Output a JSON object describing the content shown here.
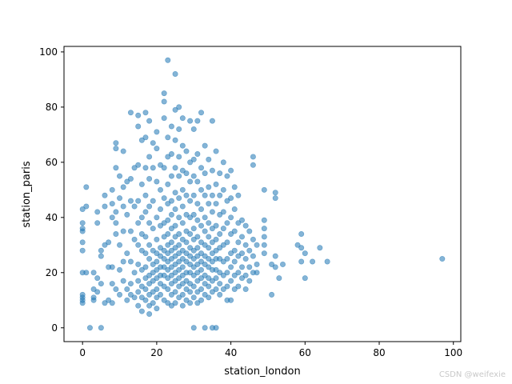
{
  "chart_data": {
    "type": "scatter",
    "xlabel": "station_london",
    "ylabel": "station_paris",
    "xlim": [
      -5,
      102
    ],
    "ylim": [
      -5,
      102
    ],
    "xticks": [
      "0",
      "20",
      "40",
      "60",
      "80",
      "100"
    ],
    "yticks": [
      "0",
      "20",
      "40",
      "60",
      "80",
      "100"
    ],
    "grid": false,
    "point_color": "#1f77b4",
    "point_alpha": 0.55,
    "points": [
      [
        0,
        43
      ],
      [
        0,
        38
      ],
      [
        0,
        36
      ],
      [
        0,
        35
      ],
      [
        0,
        31
      ],
      [
        0,
        28
      ],
      [
        0,
        20
      ],
      [
        0,
        12
      ],
      [
        0,
        11
      ],
      [
        0,
        10
      ],
      [
        0,
        9
      ],
      [
        1,
        51
      ],
      [
        1,
        44
      ],
      [
        1,
        20
      ],
      [
        2,
        0
      ],
      [
        5,
        0
      ],
      [
        3,
        20
      ],
      [
        3,
        14
      ],
      [
        3,
        11
      ],
      [
        3,
        10
      ],
      [
        4,
        42
      ],
      [
        4,
        38
      ],
      [
        4,
        18
      ],
      [
        4,
        13
      ],
      [
        5,
        28
      ],
      [
        5,
        26
      ],
      [
        5,
        16
      ],
      [
        6,
        48
      ],
      [
        6,
        44
      ],
      [
        6,
        30
      ],
      [
        6,
        9
      ],
      [
        7,
        10
      ],
      [
        7,
        22
      ],
      [
        7,
        31
      ],
      [
        8,
        50
      ],
      [
        8,
        45
      ],
      [
        8,
        40
      ],
      [
        8,
        22
      ],
      [
        8,
        16
      ],
      [
        8,
        9
      ],
      [
        9,
        67
      ],
      [
        9,
        65
      ],
      [
        9,
        58
      ],
      [
        9,
        42
      ],
      [
        9,
        38
      ],
      [
        9,
        34
      ],
      [
        9,
        14
      ],
      [
        10,
        55
      ],
      [
        10,
        47
      ],
      [
        10,
        30
      ],
      [
        10,
        21
      ],
      [
        10,
        12
      ],
      [
        11,
        64
      ],
      [
        11,
        51
      ],
      [
        11,
        44
      ],
      [
        11,
        35
      ],
      [
        11,
        24
      ],
      [
        11,
        17
      ],
      [
        12,
        53
      ],
      [
        12,
        41
      ],
      [
        12,
        27
      ],
      [
        12,
        14
      ],
      [
        12,
        10
      ],
      [
        13,
        78
      ],
      [
        13,
        54
      ],
      [
        13,
        46
      ],
      [
        13,
        35
      ],
      [
        13,
        24
      ],
      [
        13,
        16
      ],
      [
        13,
        12
      ],
      [
        14,
        58
      ],
      [
        14,
        44
      ],
      [
        14,
        32
      ],
      [
        14,
        20
      ],
      [
        14,
        11
      ],
      [
        15,
        77
      ],
      [
        15,
        73
      ],
      [
        15,
        59
      ],
      [
        15,
        46
      ],
      [
        15,
        38
      ],
      [
        15,
        30
      ],
      [
        15,
        23
      ],
      [
        15,
        17
      ],
      [
        15,
        13
      ],
      [
        15,
        8
      ],
      [
        16,
        68
      ],
      [
        16,
        52
      ],
      [
        16,
        40
      ],
      [
        16,
        34
      ],
      [
        16,
        28
      ],
      [
        16,
        21
      ],
      [
        16,
        15
      ],
      [
        16,
        11
      ],
      [
        16,
        6
      ],
      [
        17,
        78
      ],
      [
        17,
        69
      ],
      [
        17,
        58
      ],
      [
        17,
        48
      ],
      [
        17,
        42
      ],
      [
        17,
        33
      ],
      [
        17,
        27
      ],
      [
        17,
        22
      ],
      [
        17,
        18
      ],
      [
        17,
        14
      ],
      [
        17,
        10
      ],
      [
        18,
        75
      ],
      [
        18,
        62
      ],
      [
        18,
        54
      ],
      [
        18,
        44
      ],
      [
        18,
        38
      ],
      [
        18,
        30
      ],
      [
        18,
        25
      ],
      [
        18,
        19
      ],
      [
        18,
        16
      ],
      [
        18,
        12
      ],
      [
        18,
        8
      ],
      [
        18,
        5
      ],
      [
        19,
        67
      ],
      [
        19,
        58
      ],
      [
        19,
        46
      ],
      [
        19,
        36
      ],
      [
        19,
        28
      ],
      [
        19,
        23
      ],
      [
        19,
        20
      ],
      [
        19,
        17
      ],
      [
        19,
        13
      ],
      [
        19,
        9
      ],
      [
        20,
        71
      ],
      [
        20,
        65
      ],
      [
        20,
        53
      ],
      [
        20,
        40
      ],
      [
        20,
        32
      ],
      [
        20,
        27
      ],
      [
        20,
        24
      ],
      [
        20,
        21
      ],
      [
        20,
        18
      ],
      [
        20,
        14
      ],
      [
        20,
        11
      ],
      [
        20,
        7
      ],
      [
        21,
        59
      ],
      [
        21,
        50
      ],
      [
        21,
        43
      ],
      [
        21,
        37
      ],
      [
        21,
        29
      ],
      [
        21,
        26
      ],
      [
        21,
        22
      ],
      [
        21,
        19
      ],
      [
        21,
        16
      ],
      [
        21,
        12
      ],
      [
        22,
        85
      ],
      [
        22,
        82
      ],
      [
        22,
        76
      ],
      [
        22,
        58
      ],
      [
        22,
        47
      ],
      [
        22,
        38
      ],
      [
        22,
        33
      ],
      [
        22,
        28
      ],
      [
        22,
        25
      ],
      [
        22,
        22
      ],
      [
        22,
        19
      ],
      [
        22,
        15
      ],
      [
        22,
        10
      ],
      [
        23,
        97
      ],
      [
        23,
        69
      ],
      [
        23,
        62
      ],
      [
        23,
        52
      ],
      [
        23,
        45
      ],
      [
        23,
        39
      ],
      [
        23,
        34
      ],
      [
        23,
        30
      ],
      [
        23,
        27
      ],
      [
        23,
        24
      ],
      [
        23,
        21
      ],
      [
        23,
        18
      ],
      [
        23,
        14
      ],
      [
        23,
        9
      ],
      [
        24,
        73
      ],
      [
        24,
        63
      ],
      [
        24,
        55
      ],
      [
        24,
        46
      ],
      [
        24,
        41
      ],
      [
        24,
        36
      ],
      [
        24,
        31
      ],
      [
        24,
        28
      ],
      [
        24,
        25
      ],
      [
        24,
        22
      ],
      [
        24,
        19
      ],
      [
        24,
        16
      ],
      [
        24,
        12
      ],
      [
        24,
        8
      ],
      [
        25,
        92
      ],
      [
        25,
        79
      ],
      [
        25,
        68
      ],
      [
        25,
        58
      ],
      [
        25,
        49
      ],
      [
        25,
        43
      ],
      [
        25,
        37
      ],
      [
        25,
        33
      ],
      [
        25,
        29
      ],
      [
        25,
        26
      ],
      [
        25,
        23
      ],
      [
        25,
        20
      ],
      [
        25,
        17
      ],
      [
        25,
        13
      ],
      [
        25,
        9
      ],
      [
        26,
        80
      ],
      [
        26,
        72
      ],
      [
        26,
        62
      ],
      [
        26,
        55
      ],
      [
        26,
        47
      ],
      [
        26,
        40
      ],
      [
        26,
        34
      ],
      [
        26,
        30
      ],
      [
        26,
        27
      ],
      [
        26,
        24
      ],
      [
        26,
        21
      ],
      [
        26,
        18
      ],
      [
        26,
        15
      ],
      [
        26,
        11
      ],
      [
        27,
        76
      ],
      [
        27,
        66
      ],
      [
        27,
        57
      ],
      [
        27,
        50
      ],
      [
        27,
        44
      ],
      [
        27,
        38
      ],
      [
        27,
        32
      ],
      [
        27,
        28
      ],
      [
        27,
        25
      ],
      [
        27,
        22
      ],
      [
        27,
        19
      ],
      [
        27,
        16
      ],
      [
        27,
        12
      ],
      [
        27,
        8
      ],
      [
        28,
        64
      ],
      [
        28,
        56
      ],
      [
        28,
        48
      ],
      [
        28,
        41
      ],
      [
        28,
        35
      ],
      [
        28,
        31
      ],
      [
        28,
        27
      ],
      [
        28,
        24
      ],
      [
        28,
        20
      ],
      [
        28,
        17
      ],
      [
        28,
        14
      ],
      [
        28,
        10
      ],
      [
        29,
        75
      ],
      [
        29,
        60
      ],
      [
        29,
        53
      ],
      [
        29,
        46
      ],
      [
        29,
        40
      ],
      [
        29,
        34
      ],
      [
        29,
        29
      ],
      [
        29,
        26
      ],
      [
        29,
        23
      ],
      [
        29,
        20
      ],
      [
        29,
        16
      ],
      [
        29,
        13
      ],
      [
        29,
        9
      ],
      [
        30,
        72
      ],
      [
        30,
        61
      ],
      [
        30,
        55
      ],
      [
        30,
        48
      ],
      [
        30,
        41
      ],
      [
        30,
        36
      ],
      [
        30,
        32
      ],
      [
        30,
        28
      ],
      [
        30,
        25
      ],
      [
        30,
        22
      ],
      [
        30,
        19
      ],
      [
        30,
        15
      ],
      [
        30,
        11
      ],
      [
        30,
        0
      ],
      [
        31,
        75
      ],
      [
        31,
        63
      ],
      [
        31,
        53
      ],
      [
        31,
        45
      ],
      [
        31,
        39
      ],
      [
        31,
        33
      ],
      [
        31,
        29
      ],
      [
        31,
        26
      ],
      [
        31,
        23
      ],
      [
        31,
        20
      ],
      [
        31,
        17
      ],
      [
        31,
        13
      ],
      [
        31,
        9
      ],
      [
        32,
        78
      ],
      [
        32,
        58
      ],
      [
        32,
        50
      ],
      [
        32,
        43
      ],
      [
        32,
        37
      ],
      [
        32,
        31
      ],
      [
        32,
        27
      ],
      [
        32,
        24
      ],
      [
        32,
        21
      ],
      [
        32,
        18
      ],
      [
        32,
        14
      ],
      [
        32,
        10
      ],
      [
        33,
        66
      ],
      [
        33,
        56
      ],
      [
        33,
        48
      ],
      [
        33,
        40
      ],
      [
        33,
        35
      ],
      [
        33,
        30
      ],
      [
        33,
        26
      ],
      [
        33,
        23
      ],
      [
        33,
        19
      ],
      [
        33,
        16
      ],
      [
        33,
        12
      ],
      [
        33,
        0
      ],
      [
        34,
        61
      ],
      [
        34,
        51
      ],
      [
        34,
        45
      ],
      [
        34,
        38
      ],
      [
        34,
        33
      ],
      [
        34,
        29
      ],
      [
        34,
        25
      ],
      [
        34,
        22
      ],
      [
        34,
        18
      ],
      [
        34,
        15
      ],
      [
        34,
        11
      ],
      [
        35,
        75
      ],
      [
        35,
        57
      ],
      [
        35,
        48
      ],
      [
        35,
        42
      ],
      [
        35,
        36
      ],
      [
        35,
        31
      ],
      [
        35,
        27
      ],
      [
        35,
        24
      ],
      [
        35,
        21
      ],
      [
        35,
        17
      ],
      [
        35,
        13
      ],
      [
        35,
        0
      ],
      [
        36,
        64
      ],
      [
        36,
        52
      ],
      [
        36,
        45
      ],
      [
        36,
        37
      ],
      [
        36,
        32
      ],
      [
        36,
        28
      ],
      [
        36,
        25
      ],
      [
        36,
        21
      ],
      [
        36,
        18
      ],
      [
        36,
        14
      ],
      [
        36,
        0
      ],
      [
        37,
        56
      ],
      [
        37,
        48
      ],
      [
        37,
        41
      ],
      [
        37,
        34
      ],
      [
        37,
        29
      ],
      [
        37,
        25
      ],
      [
        37,
        20
      ],
      [
        37,
        16
      ],
      [
        37,
        12
      ],
      [
        38,
        60
      ],
      [
        38,
        50
      ],
      [
        38,
        42
      ],
      [
        38,
        36
      ],
      [
        38,
        30
      ],
      [
        38,
        24
      ],
      [
        38,
        19
      ],
      [
        38,
        14
      ],
      [
        39,
        55
      ],
      [
        39,
        46
      ],
      [
        39,
        38
      ],
      [
        39,
        31
      ],
      [
        39,
        25
      ],
      [
        39,
        20
      ],
      [
        39,
        15
      ],
      [
        39,
        10
      ],
      [
        40,
        57
      ],
      [
        40,
        47
      ],
      [
        40,
        40
      ],
      [
        40,
        34
      ],
      [
        40,
        27
      ],
      [
        40,
        22
      ],
      [
        40,
        17
      ],
      [
        40,
        10
      ],
      [
        41,
        51
      ],
      [
        41,
        43
      ],
      [
        41,
        35
      ],
      [
        41,
        28
      ],
      [
        41,
        24
      ],
      [
        41,
        19
      ],
      [
        41,
        14
      ],
      [
        42,
        48
      ],
      [
        42,
        38
      ],
      [
        42,
        31
      ],
      [
        42,
        26
      ],
      [
        42,
        20
      ],
      [
        42,
        15
      ],
      [
        43,
        39
      ],
      [
        43,
        33
      ],
      [
        43,
        27
      ],
      [
        43,
        22
      ],
      [
        43,
        18
      ],
      [
        44,
        37
      ],
      [
        44,
        30
      ],
      [
        44,
        25
      ],
      [
        44,
        19
      ],
      [
        44,
        14
      ],
      [
        45,
        35
      ],
      [
        45,
        28
      ],
      [
        45,
        22
      ],
      [
        45,
        17
      ],
      [
        46,
        62
      ],
      [
        46,
        59
      ],
      [
        46,
        32
      ],
      [
        46,
        26
      ],
      [
        46,
        20
      ],
      [
        47,
        30
      ],
      [
        47,
        23
      ],
      [
        47,
        20
      ],
      [
        49,
        50
      ],
      [
        49,
        39
      ],
      [
        49,
        36
      ],
      [
        49,
        33
      ],
      [
        49,
        30
      ],
      [
        49,
        27
      ],
      [
        51,
        12
      ],
      [
        51,
        23
      ],
      [
        52,
        49
      ],
      [
        52,
        47
      ],
      [
        52,
        26
      ],
      [
        52,
        22
      ],
      [
        53,
        18
      ],
      [
        54,
        23
      ],
      [
        58,
        30
      ],
      [
        59,
        34
      ],
      [
        59,
        29
      ],
      [
        59,
        24
      ],
      [
        60,
        27
      ],
      [
        60,
        18
      ],
      [
        62,
        24
      ],
      [
        64,
        29
      ],
      [
        66,
        24
      ],
      [
        97,
        25
      ]
    ]
  },
  "watermark": "CSDN @weifexie"
}
